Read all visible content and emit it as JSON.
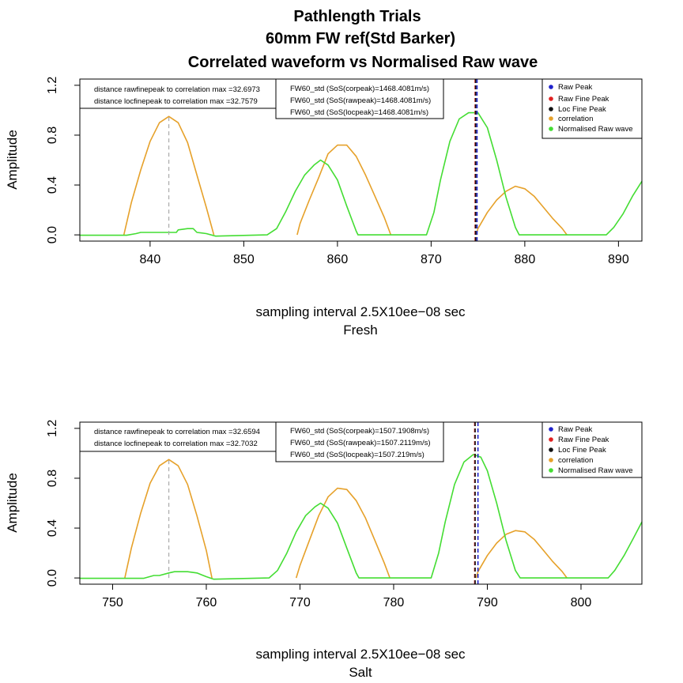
{
  "title": {
    "line1": "Pathlength Trials",
    "line2": "60mm FW ref(Std Barker)",
    "line3": "Correlated waveform vs Normalised Raw wave"
  },
  "colors": {
    "raw_peak": "#1f22cc",
    "raw_fine_peak": "#e02020",
    "loc_fine_peak": "#111111",
    "correlation": "#e6a12a",
    "normalised_raw": "#44dd33",
    "corr_peak_line": "#aaaaaa"
  },
  "legend_labels": [
    "Raw Peak",
    "Raw Fine Peak",
    "Loc Fine Peak",
    "correlation",
    "Normalised Raw wave"
  ],
  "chart_data": [
    {
      "type": "line",
      "ylabel": "Amplitude",
      "xlabel": "sampling interval 2.5X10ee−08 sec",
      "subtitle": "Fresh",
      "xlim": [
        832.5,
        892.5
      ],
      "ylim": [
        -0.05,
        1.25
      ],
      "xticks": [
        840,
        850,
        860,
        870,
        880,
        890
      ],
      "yticks": [
        0.0,
        0.4,
        0.8,
        1.2
      ],
      "yticklabels": [
        "0.0",
        "0.4",
        "0.8",
        "1.2"
      ],
      "grid": false,
      "legend": "top-right",
      "note_left": [
        "distance rawfinepeak to correlation max =32.6973",
        "distance locfinepeak to correlation max =32.7579"
      ],
      "note_mid": [
        "FW60_std (SoS(corpeak)=1468.4081m/s)",
        "FW60_std (SoS(rawpeak)=1468.4081m/s)",
        "FW60_std (SoS(locpeak)=1468.4081m/s)"
      ],
      "vlines": {
        "corr_peak": 842,
        "raw_peak": 874.9,
        "raw_fine_peak": 874.7,
        "loc_fine_peak": 874.75
      },
      "series": [
        {
          "name": "correlation",
          "x": [
            837.2,
            838,
            839,
            840,
            841,
            842,
            843,
            844,
            845,
            846,
            846.8
          ],
          "y": [
            0,
            0.26,
            0.52,
            0.75,
            0.9,
            0.95,
            0.9,
            0.74,
            0.48,
            0.22,
            0
          ]
        },
        {
          "name": "correlation",
          "x": [
            855.7,
            856,
            857,
            858,
            859,
            860,
            861,
            862,
            863,
            864,
            865,
            865.7
          ],
          "y": [
            0,
            0.09,
            0.28,
            0.46,
            0.65,
            0.72,
            0.72,
            0.63,
            0.48,
            0.31,
            0.14,
            0
          ]
        },
        {
          "name": "correlation",
          "x": [
            874.8,
            875,
            876,
            877,
            878,
            879,
            880,
            881,
            882,
            883,
            884,
            884.5
          ],
          "y": [
            0,
            0.05,
            0.18,
            0.28,
            0.35,
            0.39,
            0.37,
            0.31,
            0.22,
            0.13,
            0.05,
            0
          ]
        },
        {
          "name": "Normalised Raw wave",
          "x": [
            832.5,
            837.5,
            838.5,
            839,
            840,
            841,
            842,
            842.8,
            843,
            844,
            844.6,
            845,
            846,
            847,
            852.5,
            853.5,
            854.5,
            855.5,
            856.5,
            857.5,
            858.2,
            859,
            860,
            861,
            862,
            862.2,
            869.5,
            870.3,
            871,
            872,
            873,
            874,
            875,
            876,
            877,
            878,
            879,
            879.4,
            888.7,
            889.5,
            890.5,
            891.5,
            892.5
          ],
          "y": [
            -0.003,
            -0.003,
            0.01,
            0.02,
            0.02,
            0.02,
            0.02,
            0.02,
            0.04,
            0.05,
            0.05,
            0.02,
            0.01,
            -0.01,
            0,
            0.05,
            0.19,
            0.35,
            0.48,
            0.56,
            0.6,
            0.56,
            0.44,
            0.23,
            0.03,
            0,
            0,
            0.18,
            0.44,
            0.75,
            0.93,
            0.98,
            0.98,
            0.86,
            0.6,
            0.3,
            0.06,
            0,
            0,
            0.06,
            0.17,
            0.31,
            0.43
          ]
        }
      ]
    },
    {
      "type": "line",
      "ylabel": "Amplitude",
      "xlabel": "sampling interval 2.5X10ee−08 sec",
      "subtitle": "Salt",
      "xlim": [
        746.5,
        806.5
      ],
      "ylim": [
        -0.05,
        1.25
      ],
      "xticks": [
        750,
        760,
        770,
        780,
        790,
        800
      ],
      "yticks": [
        0.0,
        0.4,
        0.8,
        1.2
      ],
      "yticklabels": [
        "0.0",
        "0.4",
        "0.8",
        "1.2"
      ],
      "grid": false,
      "legend": "top-right",
      "note_left": [
        "distance rawfinepeak to correlation max =32.6594",
        "distance locfinepeak to correlation max =32.7032"
      ],
      "note_mid": [
        "FW60_std (SoS(corpeak)=1507.1908m/s)",
        "FW60_std (SoS(rawpeak)=1507.2119m/s)",
        "FW60_std (SoS(locpeak)=1507.219m/s)"
      ],
      "vlines": {
        "corr_peak": 756,
        "raw_peak": 789,
        "raw_fine_peak": 788.65,
        "loc_fine_peak": 788.7
      },
      "series": [
        {
          "name": "correlation",
          "x": [
            751.3,
            752,
            753,
            754,
            755,
            756,
            757,
            758,
            759,
            760,
            760.6
          ],
          "y": [
            0,
            0.24,
            0.52,
            0.76,
            0.9,
            0.95,
            0.9,
            0.75,
            0.5,
            0.22,
            0
          ]
        },
        {
          "name": "correlation",
          "x": [
            769.6,
            770,
            771,
            772,
            773,
            774,
            775,
            776,
            777,
            778,
            779,
            779.6
          ],
          "y": [
            0,
            0.1,
            0.3,
            0.5,
            0.65,
            0.72,
            0.71,
            0.62,
            0.48,
            0.3,
            0.12,
            0
          ]
        },
        {
          "name": "correlation",
          "x": [
            788.8,
            789,
            790,
            791,
            792,
            793,
            794,
            795,
            796,
            797,
            798,
            798.5
          ],
          "y": [
            0,
            0.05,
            0.18,
            0.28,
            0.35,
            0.38,
            0.37,
            0.31,
            0.22,
            0.13,
            0.05,
            0
          ]
        },
        {
          "name": "Normalised Raw wave",
          "x": [
            746.5,
            753.3,
            754.4,
            755,
            756,
            756.6,
            757,
            758,
            759,
            760,
            760.8,
            766.7,
            767.6,
            768.6,
            769.6,
            770.6,
            771.6,
            772.2,
            773,
            774,
            775,
            776,
            776.3,
            784,
            784.8,
            785.5,
            786.5,
            787.5,
            788.5,
            789.3,
            790,
            791,
            792,
            793,
            793.5,
            802.9,
            803.6,
            804.6,
            805.6,
            806.5
          ],
          "y": [
            -0.003,
            -0.003,
            0.02,
            0.02,
            0.04,
            0.05,
            0.05,
            0.05,
            0.04,
            0.01,
            -0.01,
            0,
            0.06,
            0.2,
            0.37,
            0.5,
            0.57,
            0.6,
            0.56,
            0.44,
            0.24,
            0.04,
            0,
            0,
            0.2,
            0.45,
            0.75,
            0.93,
            0.99,
            0.97,
            0.86,
            0.6,
            0.3,
            0.06,
            0,
            0,
            0.06,
            0.18,
            0.32,
            0.45
          ]
        }
      ]
    }
  ]
}
